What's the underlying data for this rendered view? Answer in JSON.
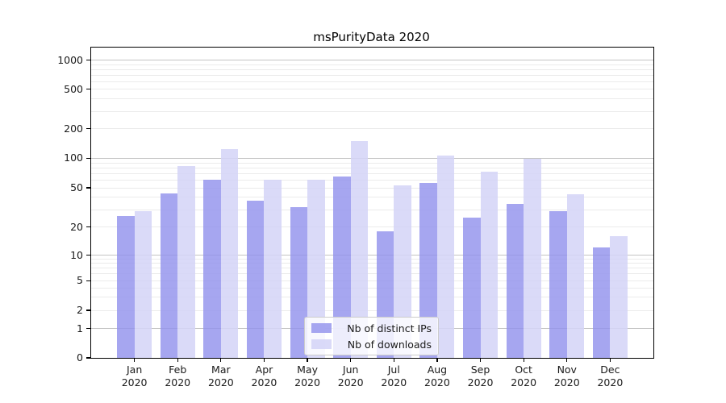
{
  "title": "msPurityData 2020",
  "legend": {
    "items": [
      {
        "label": "Nb of distinct IPs",
        "color": "rgba(147,147,237,0.82)"
      },
      {
        "label": "Nb of downloads",
        "color": "rgba(212,212,247,0.86)"
      }
    ]
  },
  "chart_data": {
    "type": "bar",
    "title": "msPurityData 2020",
    "categories": [
      "Jan",
      "Feb",
      "Mar",
      "Apr",
      "May",
      "Jun",
      "Jul",
      "Aug",
      "Sep",
      "Oct",
      "Nov",
      "Dec"
    ],
    "category_year": "2020",
    "series": [
      {
        "name": "Nb of distinct IPs",
        "color": "rgba(147,147,237,0.82)",
        "values": [
          26,
          44,
          60,
          37,
          32,
          65,
          18,
          56,
          25,
          34,
          29,
          12
        ]
      },
      {
        "name": "Nb of downloads",
        "color": "rgba(212,212,247,0.86)",
        "values": [
          29,
          84,
          125,
          61,
          60,
          149,
          53,
          107,
          73,
          99,
          43,
          16
        ]
      }
    ],
    "xlabel": "",
    "ylabel": "",
    "y_axis": {
      "scale": "symlog-like",
      "tick_values": [
        0,
        1,
        2,
        5,
        10,
        20,
        50,
        100,
        200,
        500,
        1000
      ],
      "tick_labels": [
        "0",
        "1",
        "2",
        "5",
        "10",
        "20",
        "50",
        "100",
        "200",
        "500",
        "1000"
      ],
      "major_grid_values": [
        1,
        10,
        100,
        1000
      ],
      "minor_grid_values": [
        2,
        3,
        4,
        5,
        6,
        7,
        8,
        9,
        20,
        30,
        40,
        50,
        60,
        70,
        80,
        90,
        200,
        300,
        400,
        500,
        600,
        700,
        800,
        900
      ]
    },
    "grid": true,
    "legend_position": "inside-bottom-center",
    "colors": {
      "major_grid": "#c3c3c3",
      "minor_grid": "#ebebeb",
      "axis": "#000000",
      "text": "#1a1a1a"
    }
  }
}
